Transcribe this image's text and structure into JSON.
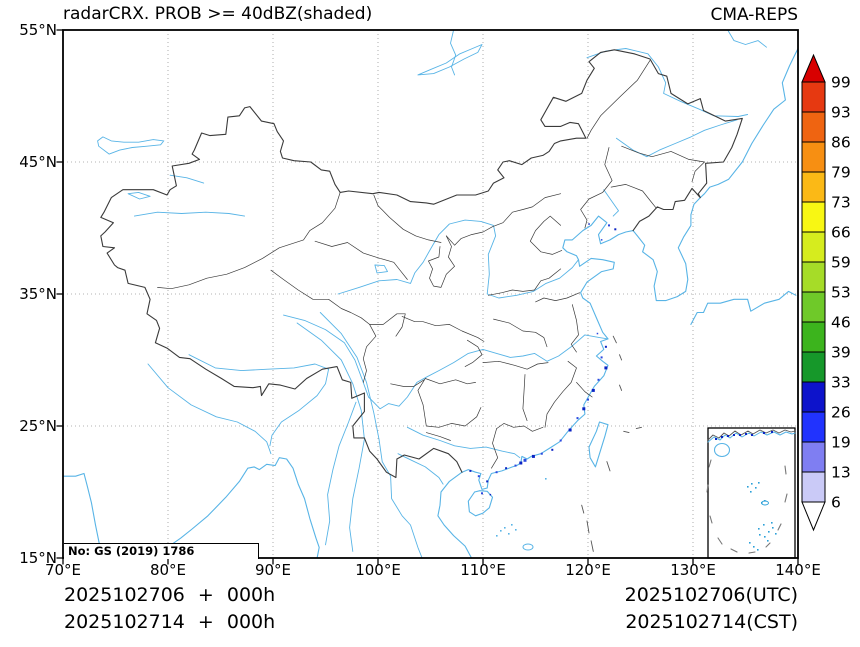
{
  "title": "radarCRX. PROB >= 40dBZ(shaded)",
  "model_label": "CMA-REPS",
  "map": {
    "note": "No: GS (2019) 1786",
    "x_ticks": [
      "70°E",
      "80°E",
      "90°E",
      "100°E",
      "110°E",
      "120°E",
      "130°E",
      "140°E"
    ],
    "y_ticks": [
      "55°N",
      "45°N",
      "35°N",
      "25°N",
      "15°N"
    ]
  },
  "colorbar": {
    "values": [
      99,
      93,
      86,
      79,
      73,
      66,
      59,
      53,
      46,
      39,
      33,
      26,
      19,
      13,
      6
    ],
    "segment_colors": [
      "#e63911",
      "#ef6411",
      "#f78f12",
      "#fbb916",
      "#f8f713",
      "#d6ec1e",
      "#a6dc28",
      "#6fc929",
      "#3cb41d",
      "#16982a",
      "#0d13cb",
      "#2133fe",
      "#7f7ef2",
      "#cacaf7"
    ],
    "over_color": "#d80000",
    "under_color": "#ffffff"
  },
  "footer": {
    "left_line1": "2025102706 + 000h",
    "left_line2": "2025102714 + 000h",
    "right_line1": "2025102706(UTC)",
    "right_line2": "2025102714(CST)"
  },
  "colors": {
    "frame": "#000000",
    "border": "#3a3a3a",
    "coast": "#58b4e6",
    "grid": "#9a9a9a",
    "shade_a": "#0b23c4",
    "shade_b": "#2b49e0",
    "island_dash": "#555555"
  }
}
